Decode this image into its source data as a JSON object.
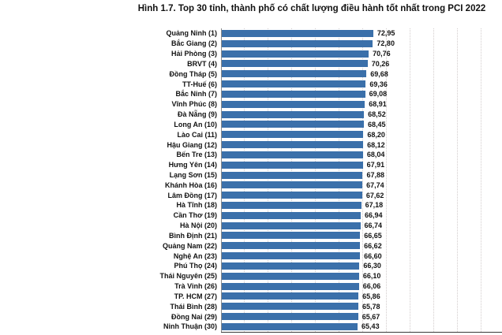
{
  "title": "Hình 1.7. Top 30 tỉnh, thành phố có chất lượng điều hành tốt nhất trong PCI 2022",
  "colors": {
    "bar": "#3B70AA",
    "gridline": "#d2cccc",
    "axis": "#3a3a3a",
    "text": "#121212",
    "background": "#ffffff"
  },
  "chart_data": {
    "type": "bar",
    "orientation": "horizontal",
    "title": "Hình 1.7. Top 30 tỉnh, thành phố có chất lượng điều hành tốt nhất trong PCI 2022",
    "categories": [
      "Quảng Ninh (1)",
      "Bắc Giang (2)",
      "Hải Phòng (3)",
      "BRVT (4)",
      "Đồng Tháp (5)",
      "TT-Huế (6)",
      "Bắc Ninh (7)",
      "Vĩnh Phúc (8)",
      "Đà Nẵng (9)",
      "Long An (10)",
      "Lào Cai (11)",
      "Hậu Giang (12)",
      "Bến Tre (13)",
      "Hưng Yên (14)",
      "Lạng Sơn (15)",
      "Khánh Hòa (16)",
      "Lâm Đồng (17)",
      "Hà Tĩnh (18)",
      "Cần Thơ (19)",
      "Hà Nội (20)",
      "Bình Định (21)",
      "Quảng Nam (22)",
      "Nghệ An (23)",
      "Phú Thọ (24)",
      "Thái Nguyên (25)",
      "Trà Vinh (26)",
      "TP. HCM (27)",
      "Thái Bình (28)",
      "Đồng Nai (29)",
      "Ninh Thuận (30)"
    ],
    "values": [
      72.95,
      72.8,
      70.76,
      70.26,
      69.68,
      69.36,
      69.08,
      68.91,
      68.52,
      68.45,
      68.2,
      68.12,
      68.04,
      67.91,
      67.88,
      67.74,
      67.62,
      67.18,
      66.94,
      66.74,
      66.65,
      66.62,
      66.6,
      66.3,
      66.1,
      66.06,
      65.86,
      65.78,
      65.67,
      65.43
    ],
    "value_labels": [
      "72,95",
      "72,80",
      "70,76",
      "70,26",
      "69,68",
      "69,36",
      "69,08",
      "68,91",
      "68,52",
      "68,45",
      "68,20",
      "68,12",
      "68,04",
      "67,91",
      "67,88",
      "67,74",
      "67,62",
      "67,18",
      "66,94",
      "66,74",
      "66,65",
      "66,62",
      "66,60",
      "66,30",
      "66,10",
      "66,06",
      "65,86",
      "65,78",
      "65,67",
      "65,43"
    ],
    "xlabel": "",
    "ylabel": "",
    "xlim": [
      0,
      135
    ],
    "grid": "vertical-dotted",
    "legend": "none",
    "bar_color": "#3B70AA"
  }
}
